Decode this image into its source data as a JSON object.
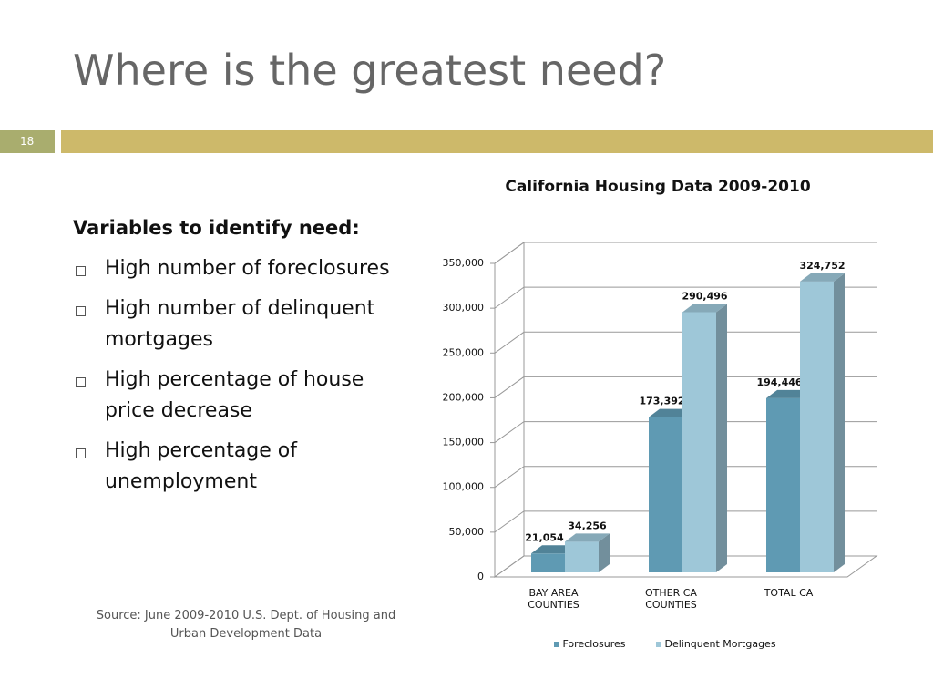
{
  "slide": {
    "title": "Where is the greatest need?",
    "page_number": "18",
    "heading": "Variables to identify need:",
    "bullets": [
      "High number of foreclosures",
      "High number of delinquent mortgages",
      "High percentage of house price decrease",
      "High percentage of unemployment"
    ],
    "source": "Source:  June 2009-2010 U.S. Dept. of Housing and Urban Development Data"
  },
  "chart_data": {
    "type": "bar",
    "title": "California Housing Data 2009-2010",
    "categories": [
      "BAY AREA COUNTIES",
      "OTHER CA COUNTIES",
      "TOTAL CA"
    ],
    "series": [
      {
        "name": "Foreclosures",
        "color": "#5f9ab3",
        "values": [
          21054,
          173392,
          194446
        ],
        "value_labels": [
          "21,054",
          "173,392",
          "194,446"
        ]
      },
      {
        "name": "Delinquent Mortgages",
        "color": "#9ec7d8",
        "values": [
          34256,
          290496,
          324752
        ],
        "value_labels": [
          "34,256",
          "290,496",
          "324,752"
        ]
      }
    ],
    "ylim": [
      0,
      350000
    ],
    "yticks": [
      0,
      {
        "value": 50000,
        "label": "50,000"
      },
      {
        "value": 100000,
        "label": "100,000"
      },
      {
        "value": 150000,
        "label": "150,000"
      },
      {
        "value": 200000,
        "label": "200,000"
      },
      {
        "value": 250000,
        "label": "250,000"
      },
      {
        "value": 300000,
        "label": "300,000"
      },
      {
        "value": 350000,
        "label": "350,000"
      }
    ],
    "grid": true,
    "legend": "bottom"
  }
}
